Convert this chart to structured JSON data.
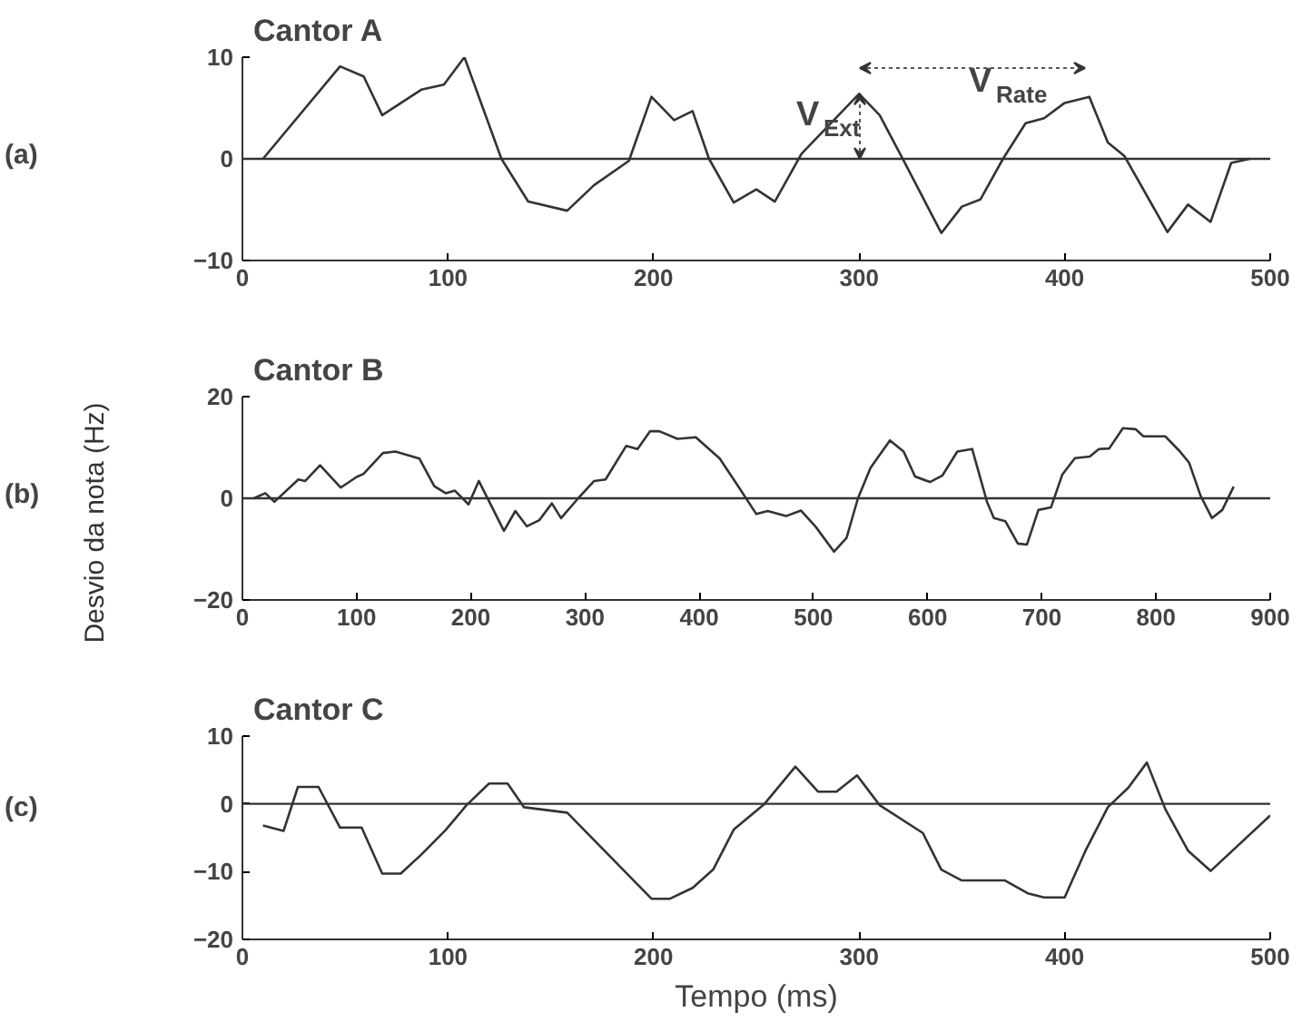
{
  "chart_data": [
    {
      "type": "line",
      "title": "Cantor A",
      "annotations": [
        "(a)",
        "V$_{Ext}$",
        "V$_{Rate}$"
      ],
      "x": [
        10,
        47.5,
        59,
        68,
        87,
        98,
        108,
        126,
        139,
        158,
        171,
        188,
        199,
        210,
        219,
        227,
        239,
        250,
        259,
        272,
        300,
        310,
        322,
        340,
        350,
        359,
        370,
        381,
        390,
        400,
        412,
        421,
        429,
        450,
        460,
        471,
        481,
        490
      ],
      "series": [
        {
          "color": "#333333",
          "values": [
            0,
            9.1,
            8.1,
            4.3,
            6.8,
            7.3,
            10,
            0,
            -4.2,
            -5.1,
            -2.6,
            -0.2,
            6.1,
            3.8,
            4.7,
            0,
            -4.3,
            -3.0,
            -4.2,
            0.5,
            6.4,
            4.3,
            -0.3,
            -7.3,
            -4.7,
            -4.0,
            0,
            3.5,
            4.0,
            5.5,
            6.1,
            1.6,
            0.3,
            -7.2,
            -4.5,
            -6.2,
            -0.4,
            0
          ]
        }
      ],
      "xlim": [
        0,
        500
      ],
      "xticks": [
        0,
        100,
        200,
        300,
        400,
        500
      ],
      "ylim": [
        -10,
        10
      ],
      "yticks": [
        -10,
        0,
        10
      ],
      "ref_lines": [
        {
          "axis": "y",
          "value": 0,
          "color": "#333333"
        }
      ]
    },
    {
      "type": "line",
      "title": "Cantor B",
      "annotations": [
        "(b)"
      ],
      "ylabel": "Desvio da nota (Hz)",
      "x": [
        10,
        20,
        28,
        49,
        55,
        68,
        86,
        100,
        106,
        123,
        134,
        155,
        168,
        178,
        186,
        198,
        207,
        229,
        239,
        249,
        260,
        271,
        279,
        294,
        308,
        318,
        336,
        346,
        357,
        365,
        381,
        397,
        418,
        434,
        450,
        460,
        476,
        489,
        502,
        518,
        529,
        539,
        550,
        567,
        579,
        589,
        602,
        613,
        626,
        639,
        652,
        658,
        668,
        679,
        687,
        697,
        708,
        718,
        729,
        742,
        750,
        759,
        771,
        782,
        789,
        808,
        821,
        829,
        839,
        849,
        858,
        868
      ],
      "series": [
        {
          "color": "#333333",
          "values": [
            0,
            1,
            -0.7,
            3.7,
            3.4,
            6.5,
            2.1,
            4.2,
            4.8,
            8.9,
            9.2,
            7.8,
            2.4,
            1.0,
            1.5,
            -1.2,
            3.4,
            -6.4,
            -2.5,
            -5.5,
            -4.3,
            -1.0,
            -3.9,
            0,
            3.4,
            3.7,
            10.3,
            9.7,
            13.2,
            13.2,
            11.7,
            12.0,
            7.8,
            2.4,
            -3.1,
            -2.5,
            -3.5,
            -2.4,
            -5.6,
            -10.5,
            -7.8,
            0,
            6.0,
            11.4,
            9.2,
            4.3,
            3.2,
            4.5,
            9.2,
            9.7,
            -0.7,
            -3.9,
            -4.5,
            -8.9,
            -9.1,
            -2.3,
            -1.8,
            4.7,
            7.9,
            8.2,
            9.7,
            9.8,
            13.8,
            13.6,
            12.2,
            12.2,
            9.2,
            7.0,
            0.5,
            -3.9,
            -2.3,
            2.3
          ]
        }
      ],
      "xlim": [
        0,
        900
      ],
      "xticks": [
        0,
        100,
        200,
        300,
        400,
        500,
        600,
        700,
        800,
        900
      ],
      "ylim": [
        -20,
        20
      ],
      "yticks": [
        -20,
        0,
        20
      ],
      "ref_lines": [
        {
          "axis": "y",
          "value": 0,
          "color": "#333333"
        }
      ]
    },
    {
      "type": "line",
      "title": "Cantor C",
      "annotations": [
        "(c)"
      ],
      "xlabel": "Tempo (ms)",
      "x": [
        10,
        20,
        27,
        37,
        47.5,
        58,
        68,
        77,
        87,
        99,
        109,
        120,
        129,
        137,
        158,
        199,
        208,
        219,
        229,
        239,
        254,
        269,
        280,
        289,
        299,
        310,
        331,
        340,
        350,
        371,
        382,
        390,
        400,
        410,
        421,
        431,
        440,
        449,
        460,
        471,
        500
      ],
      "series": [
        {
          "color": "#333333",
          "values": [
            -3.2,
            -4.0,
            2.5,
            2.5,
            -3.5,
            -3.5,
            -10.3,
            -10.3,
            -7.5,
            -3.8,
            -0.2,
            3.0,
            3.0,
            -0.5,
            -1.3,
            -14,
            -14,
            -12.4,
            -9.7,
            -3.8,
            0,
            5.5,
            1.8,
            1.8,
            4.2,
            -0.2,
            -4.3,
            -9.7,
            -11.3,
            -11.3,
            -13.2,
            -13.8,
            -13.8,
            -7.0,
            -0.5,
            2.4,
            6.1,
            -0.8,
            -6.9,
            -9.9,
            -1.7
          ]
        }
      ],
      "xlim": [
        0,
        500
      ],
      "xticks": [
        0,
        100,
        200,
        300,
        400,
        500
      ],
      "ylim": [
        -20,
        10
      ],
      "yticks": [
        -20,
        -10,
        0,
        10
      ],
      "ref_lines": [
        {
          "axis": "y",
          "value": 0,
          "color": "#333333"
        }
      ]
    }
  ]
}
